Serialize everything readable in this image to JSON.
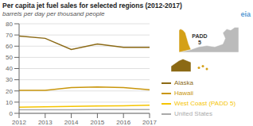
{
  "chart_data": {
    "type": "line",
    "title": "Per capita jet fuel sales for selected regions (2012-2017)",
    "subtitle": "barrels per day per thousand people",
    "annotations": [
      "eia",
      "PADD\n5"
    ],
    "x": [
      2012,
      2013,
      2014,
      2015,
      2016,
      2017
    ],
    "xlim": [
      2012,
      2017
    ],
    "xticks": [
      2012,
      2013,
      2014,
      2015,
      2016,
      2017
    ],
    "ylim": [
      0,
      80
    ],
    "yticks": [
      0,
      10,
      20,
      30,
      40,
      50,
      60,
      70,
      80
    ],
    "grid": true,
    "legend": "right",
    "series": [
      {
        "name": "Alaska",
        "color": "#8B6914",
        "values": [
          69,
          67,
          57,
          62,
          59,
          59
        ]
      },
      {
        "name": "Hawaii",
        "color": "#C9960C",
        "values": [
          20.5,
          20.5,
          23,
          23.5,
          23,
          21
        ]
      },
      {
        "name": "West Coast (PADD 5)",
        "color": "#F5C400",
        "values": [
          5.5,
          5.8,
          6.2,
          6.5,
          6.8,
          7.2
        ]
      },
      {
        "name": "United States",
        "color": "#AAAAAA",
        "values": [
          3.2,
          3.2,
          3.2,
          3.3,
          3.3,
          3.4
        ]
      }
    ]
  }
}
